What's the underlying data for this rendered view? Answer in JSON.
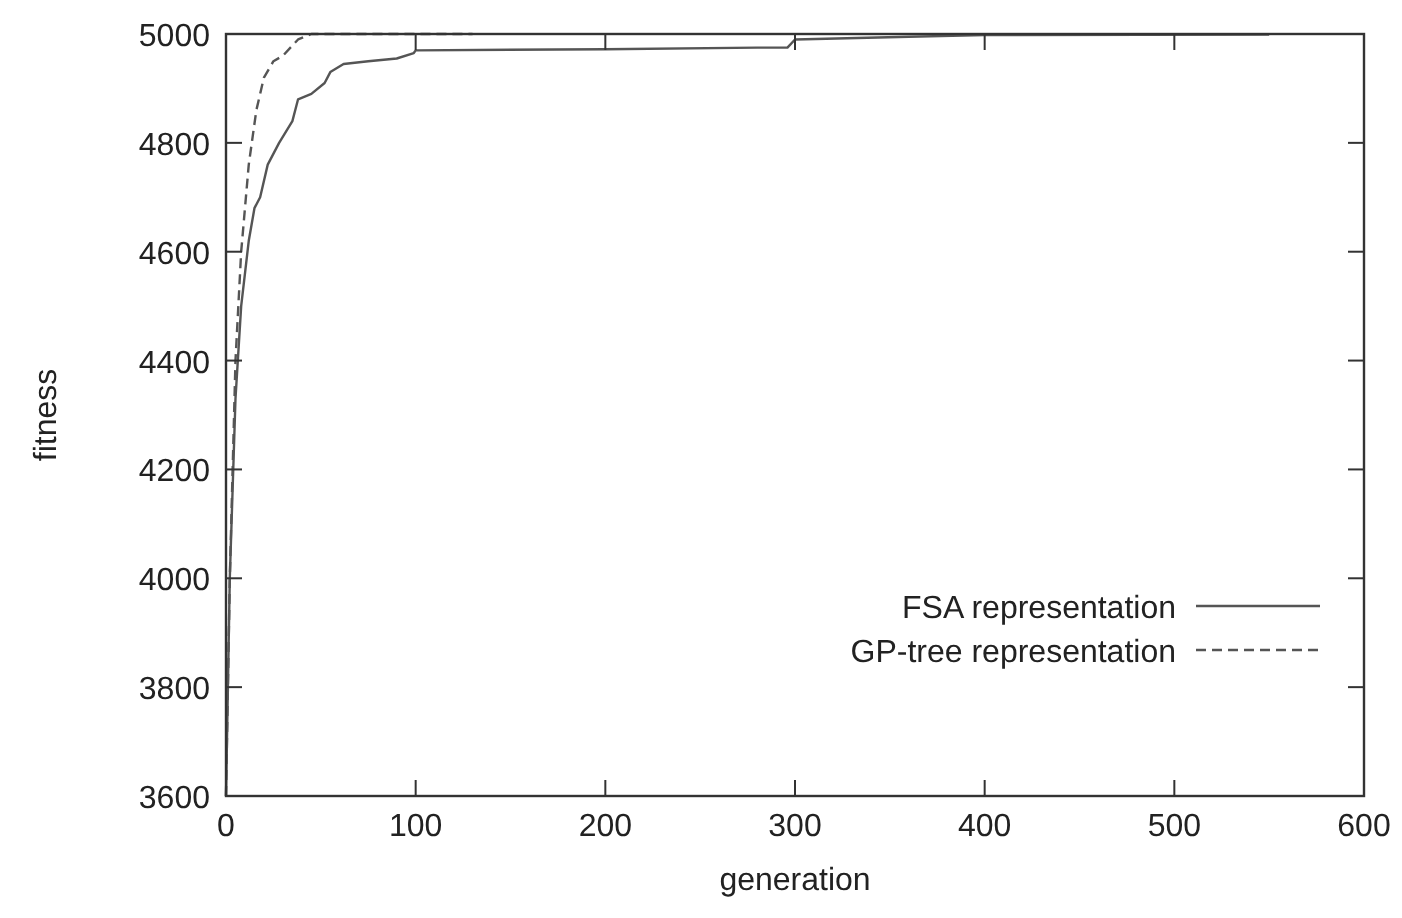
{
  "chart_data": {
    "type": "line",
    "xlabel": "generation",
    "ylabel": "fitness",
    "xlim": [
      0,
      600
    ],
    "ylim": [
      3600,
      5000
    ],
    "xticks": [
      0,
      100,
      200,
      300,
      400,
      500,
      600
    ],
    "yticks": [
      3600,
      3800,
      4000,
      4200,
      4400,
      4600,
      4800,
      5000
    ],
    "grid": false,
    "legend": "bottom right",
    "series": [
      {
        "name": "FSA representation",
        "color": "#555555",
        "line_style": "solid",
        "x": [
          0,
          2,
          5,
          8,
          12,
          15,
          18,
          22,
          28,
          35,
          38,
          45,
          52,
          55,
          62,
          75,
          90,
          99,
          100,
          200,
          280,
          296,
          300,
          360,
          400,
          550
        ],
        "values": [
          3600,
          4000,
          4330,
          4500,
          4620,
          4680,
          4700,
          4760,
          4800,
          4840,
          4880,
          4890,
          4910,
          4930,
          4945,
          4950,
          4955,
          4965,
          4970,
          4972,
          4975,
          4975,
          4990,
          4995,
          4998,
          4999
        ]
      },
      {
        "name": "GP-tree representation",
        "color": "#555555",
        "line_style": "dashed",
        "x": [
          0,
          2,
          5,
          8,
          12,
          16,
          20,
          25,
          30,
          38,
          45,
          130
        ],
        "values": [
          3600,
          4000,
          4400,
          4600,
          4760,
          4860,
          4920,
          4950,
          4960,
          4990,
          5000,
          5000
        ]
      }
    ]
  }
}
